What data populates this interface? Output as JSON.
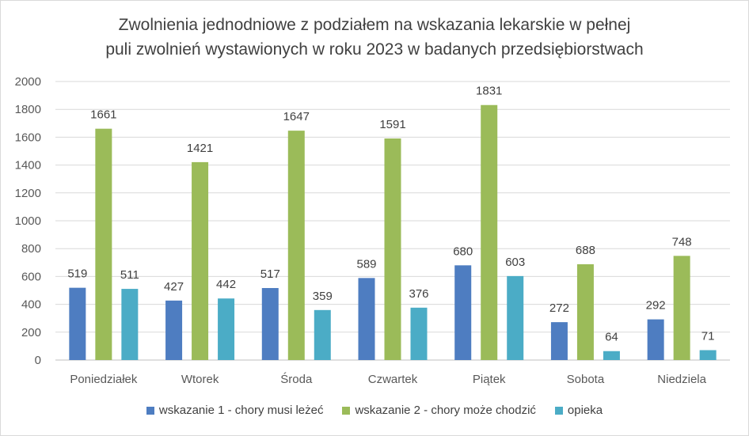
{
  "colors": {
    "series1": "#4e7dc1",
    "series2": "#9bbb59",
    "series3": "#4bacc6",
    "grid": "#d9d9d9"
  },
  "chart_data": {
    "type": "bar",
    "title_line1": "Zwolnienia jednodniowe z podziałem na wskazania lekarskie w pełnej",
    "title_line2": "puli zwolnień wystawionych w roku 2023 w badanych przedsiębiorstwach",
    "categories": [
      "Poniedziałek",
      "Wtorek",
      "Środa",
      "Czwartek",
      "Piątek",
      "Sobota",
      "Niedziela"
    ],
    "series": [
      {
        "name": "wskazanie 1 - chory musi leżeć",
        "values": [
          519,
          427,
          517,
          589,
          680,
          272,
          292
        ]
      },
      {
        "name": "wskazanie 2 - chory może chodzić",
        "values": [
          1661,
          1421,
          1647,
          1591,
          1831,
          688,
          748
        ]
      },
      {
        "name": "opieka",
        "values": [
          511,
          442,
          359,
          376,
          603,
          64,
          71
        ]
      }
    ],
    "ylim": [
      0,
      2000
    ],
    "yticks": [
      "0",
      "200",
      "400",
      "600",
      "800",
      "1000",
      "1200",
      "1400",
      "1600",
      "1800",
      "2000"
    ],
    "grid": true,
    "legend_position": "bottom"
  }
}
